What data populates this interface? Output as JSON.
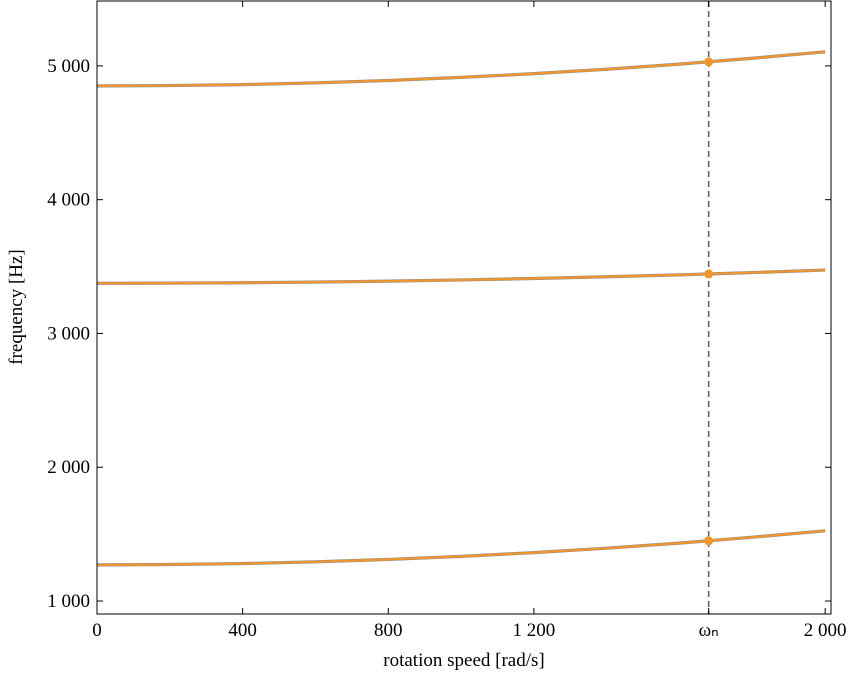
{
  "chart_data": {
    "type": "line",
    "xlabel": "rotation speed [rad/s]",
    "ylabel": "frequency [Hz]",
    "x": [
      0,
      200,
      400,
      600,
      800,
      1000,
      1200,
      1400,
      1600,
      1800,
      2000
    ],
    "series": [
      {
        "color": "#8c8c8c",
        "values": [
          1270,
          1273,
          1280,
          1293,
          1311,
          1334,
          1362,
          1395,
          1433,
          1477,
          1525
        ]
      },
      {
        "color": "#8c8c8c",
        "values": [
          3375,
          3376,
          3379,
          3384,
          3391,
          3400,
          3411,
          3424,
          3438,
          3455,
          3474
        ]
      },
      {
        "color": "#8c8c8c",
        "values": [
          4850,
          4853,
          4860,
          4873,
          4891,
          4914,
          4942,
          4975,
          5013,
          5057,
          5105
        ]
      },
      {
        "color": "#f0962d",
        "values": [
          1270,
          1273,
          1280,
          1293,
          1311,
          1334,
          1362,
          1395,
          1433,
          1477,
          1525
        ]
      },
      {
        "color": "#f0962d",
        "values": [
          3375,
          3376,
          3379,
          3384,
          3391,
          3400,
          3411,
          3424,
          3438,
          3455,
          3474
        ]
      },
      {
        "color": "#f0962d",
        "values": [
          4850,
          4853,
          4860,
          4873,
          4891,
          4914,
          4942,
          4975,
          5013,
          5057,
          5105
        ]
      }
    ],
    "markers": {
      "x": 1680,
      "values": [
        1450,
        3445,
        5030
      ],
      "color": "#f0962d"
    },
    "vline": {
      "x": 1680,
      "color": "#666666"
    },
    "xlim": [
      0,
      2016
    ],
    "ylim": [
      903,
      5485
    ],
    "xticks": [
      0,
      400,
      800,
      {
        "value": 1200,
        "label": "1 200"
      },
      {
        "value": 1680,
        "label": "ωₙ"
      },
      {
        "value": 2000,
        "label": "2 000"
      }
    ],
    "yticks": [
      {
        "value": 1000,
        "label": "1 000"
      },
      {
        "value": 2000,
        "label": "2 000"
      },
      {
        "value": 3000,
        "label": "3 000"
      },
      {
        "value": 4000,
        "label": "4 000"
      },
      {
        "value": 5000,
        "label": "5 000"
      }
    ]
  }
}
